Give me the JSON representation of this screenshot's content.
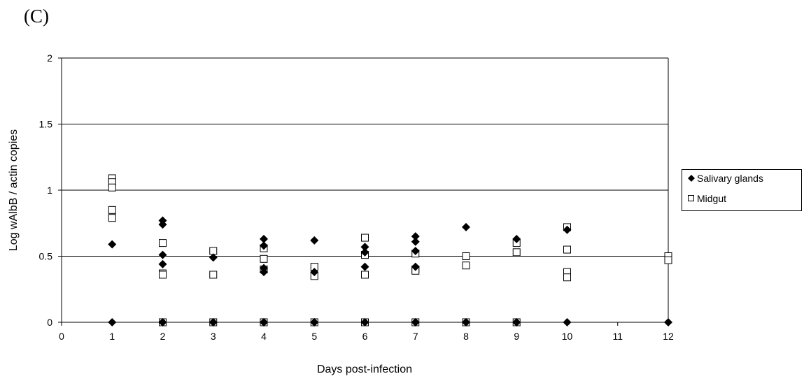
{
  "panel_label": "(C)",
  "chart_data": {
    "type": "scatter",
    "xlabel": "Days post-infection",
    "ylabel": "Log wAlbB  / actin copies",
    "x_ticks": [
      "0",
      "1",
      "2",
      "3",
      "4",
      "5",
      "6",
      "7",
      "8",
      "9",
      "10",
      "11",
      "12"
    ],
    "y_ticks": [
      "0",
      "0.5",
      "1",
      "1.5",
      "2"
    ],
    "xlim": [
      0,
      12
    ],
    "ylim": [
      0,
      2
    ],
    "grid": "horizontal major gridlines",
    "legend_position": "right",
    "series": [
      {
        "name": "Salivary glands",
        "marker": "filled-diamond",
        "color": "#000000",
        "points": [
          [
            1,
            0.59
          ],
          [
            1,
            0
          ],
          [
            2,
            0.77
          ],
          [
            2,
            0.74
          ],
          [
            2,
            0.51
          ],
          [
            2,
            0.44
          ],
          [
            2,
            0
          ],
          [
            2,
            0
          ],
          [
            3,
            0.49
          ],
          [
            3,
            0
          ],
          [
            3,
            0
          ],
          [
            4,
            0.63
          ],
          [
            4,
            0.58
          ],
          [
            4,
            0.41
          ],
          [
            4,
            0.38
          ],
          [
            4,
            0
          ],
          [
            4,
            0
          ],
          [
            5,
            0.62
          ],
          [
            5,
            0.38
          ],
          [
            5,
            0
          ],
          [
            5,
            0
          ],
          [
            6,
            0.57
          ],
          [
            6,
            0.53
          ],
          [
            6,
            0.42
          ],
          [
            6,
            0
          ],
          [
            7,
            0.65
          ],
          [
            7,
            0.61
          ],
          [
            7,
            0.54
          ],
          [
            7,
            0.42
          ],
          [
            7,
            0
          ],
          [
            7,
            0
          ],
          [
            8,
            0.72
          ],
          [
            8,
            0
          ],
          [
            8,
            0
          ],
          [
            9,
            0.63
          ],
          [
            9,
            0
          ],
          [
            9,
            0
          ],
          [
            10,
            0.7
          ],
          [
            10,
            0
          ],
          [
            12,
            0
          ]
        ]
      },
      {
        "name": "Midgut",
        "marker": "open-square",
        "color": "#000000",
        "points": [
          [
            1,
            1.09
          ],
          [
            1,
            1.06
          ],
          [
            1,
            1.02
          ],
          [
            1,
            0.85
          ],
          [
            1,
            0.79
          ],
          [
            2,
            0.6
          ],
          [
            2,
            0.37
          ],
          [
            2,
            0.36
          ],
          [
            2,
            0
          ],
          [
            3,
            0.54
          ],
          [
            3,
            0.36
          ],
          [
            3,
            0
          ],
          [
            4,
            0.56
          ],
          [
            4,
            0.48
          ],
          [
            4,
            0.4
          ],
          [
            4,
            0
          ],
          [
            5,
            0.42
          ],
          [
            5,
            0.35
          ],
          [
            5,
            0
          ],
          [
            6,
            0.64
          ],
          [
            6,
            0.51
          ],
          [
            6,
            0.36
          ],
          [
            6,
            0
          ],
          [
            7,
            0.52
          ],
          [
            7,
            0.4
          ],
          [
            7,
            0.39
          ],
          [
            7,
            0
          ],
          [
            8,
            0.5
          ],
          [
            8,
            0.43
          ],
          [
            8,
            0
          ],
          [
            9,
            0.6
          ],
          [
            9,
            0.53
          ],
          [
            9,
            0
          ],
          [
            10,
            0.72
          ],
          [
            10,
            0.55
          ],
          [
            10,
            0.38
          ],
          [
            10,
            0.34
          ],
          [
            12,
            0.5
          ],
          [
            12,
            0.47
          ]
        ]
      }
    ]
  }
}
